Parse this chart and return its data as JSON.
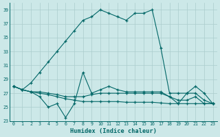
{
  "xlabel": "Humidex (Indice chaleur)",
  "bg_color": "#cce8e8",
  "grid_color": "#aacccc",
  "line_color": "#006666",
  "xlim": [
    -0.5,
    23.5
  ],
  "ylim": [
    23,
    40
  ],
  "yticks": [
    23,
    25,
    27,
    29,
    31,
    33,
    35,
    37,
    39
  ],
  "xticks": [
    0,
    1,
    2,
    3,
    4,
    5,
    6,
    7,
    8,
    9,
    10,
    11,
    12,
    13,
    14,
    15,
    16,
    17,
    18,
    19,
    20,
    21,
    22,
    23
  ],
  "series": [
    [
      28.0,
      27.5,
      28.5,
      30.0,
      31.5,
      33.0,
      34.5,
      36.0,
      37.5,
      38.0,
      39.0,
      38.5,
      38.0,
      37.5,
      38.5,
      38.5,
      39.0,
      33.5,
      27.0,
      27.0,
      27.0,
      27.0,
      26.0,
      25.5
    ],
    [
      28.0,
      27.5,
      27.2,
      26.5,
      25.0,
      25.5,
      23.5,
      25.5,
      30.0,
      27.0,
      27.5,
      28.0,
      27.5,
      27.2,
      27.2,
      27.2,
      27.2,
      27.2,
      26.5,
      25.5,
      27.0,
      28.0,
      27.0,
      25.5
    ],
    [
      28.0,
      27.5,
      27.2,
      27.2,
      27.0,
      26.8,
      26.5,
      26.5,
      26.5,
      26.8,
      27.0,
      27.0,
      27.0,
      27.0,
      27.0,
      27.0,
      27.0,
      27.0,
      26.5,
      26.0,
      26.0,
      26.5,
      25.5,
      25.5
    ],
    [
      28.0,
      27.5,
      27.2,
      27.0,
      26.8,
      26.5,
      26.2,
      26.0,
      25.8,
      25.8,
      25.8,
      25.8,
      25.8,
      25.7,
      25.7,
      25.7,
      25.7,
      25.6,
      25.5,
      25.5,
      25.5,
      25.5,
      25.5,
      25.5
    ]
  ]
}
